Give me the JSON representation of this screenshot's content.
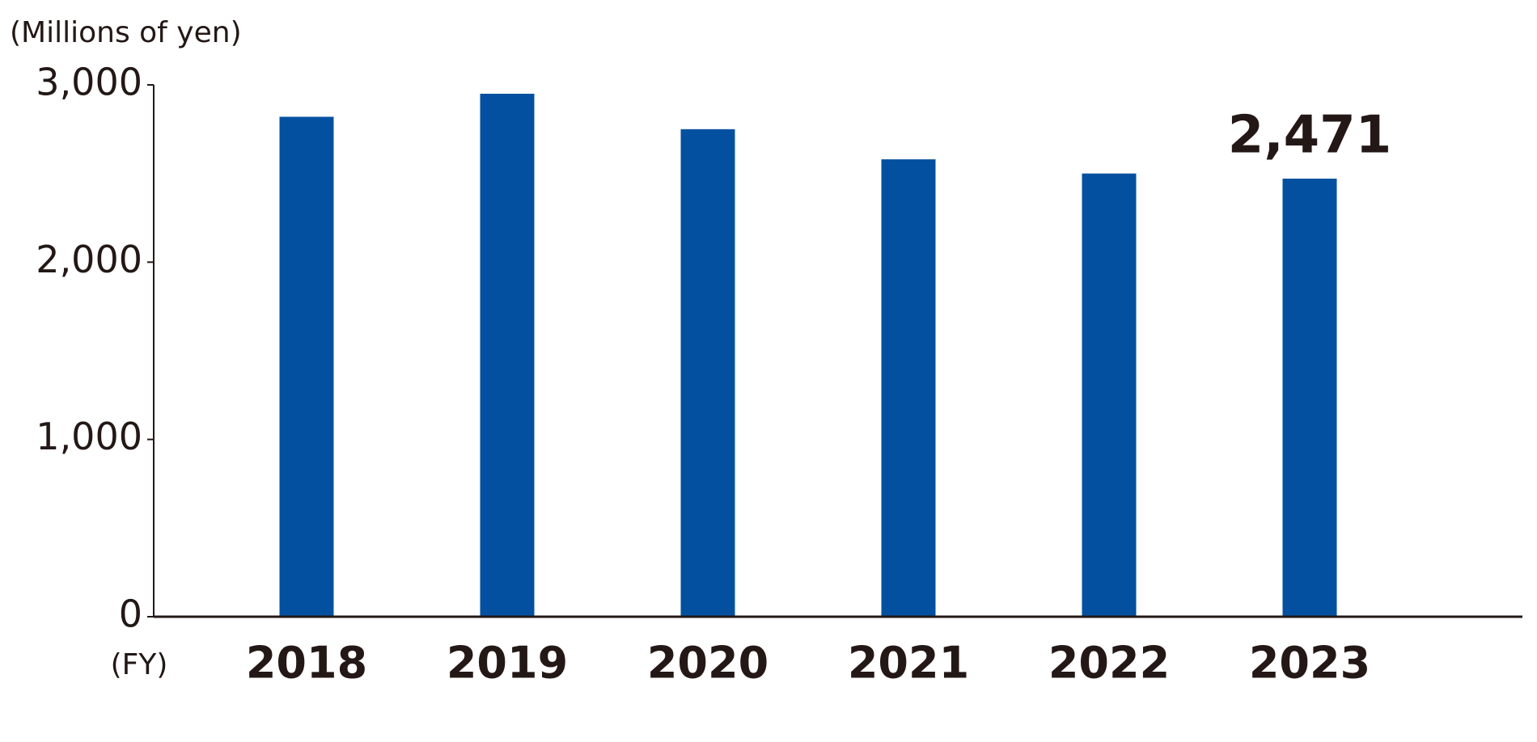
{
  "chart_data": {
    "type": "bar",
    "y_label": "(Millions of yen)",
    "x_label": "(FY)",
    "categories": [
      "2018",
      "2019",
      "2020",
      "2021",
      "2022",
      "2023"
    ],
    "values": [
      2820,
      2950,
      2750,
      2580,
      2500,
      2471
    ],
    "value_labels": [
      null,
      null,
      null,
      null,
      null,
      "2,471"
    ],
    "color": "#0450a0",
    "ylim": [
      0,
      3000
    ],
    "yticks": [
      0,
      {
        "value": 1000,
        "label": "1,000"
      },
      {
        "value": 2000,
        "label": "2,000"
      },
      {
        "value": 3000,
        "label": "3,000"
      }
    ],
    "grid": false
  }
}
